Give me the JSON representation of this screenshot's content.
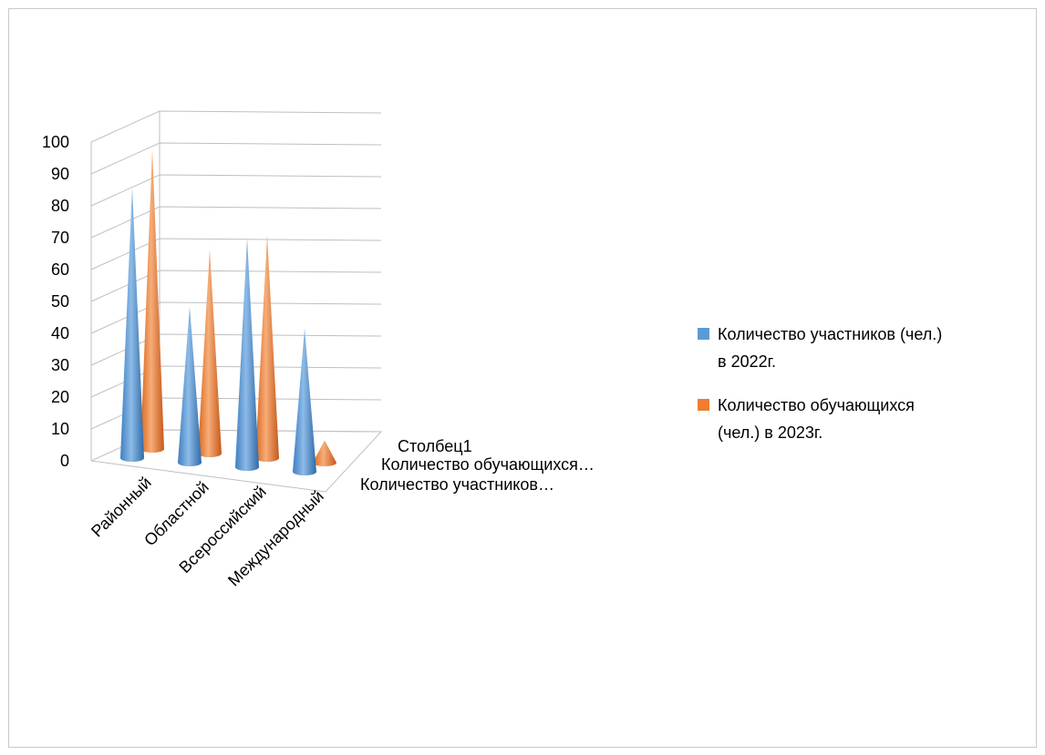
{
  "chart_data": {
    "type": "bar",
    "style": "3d-cone",
    "categories": [
      "Районный",
      "Областной",
      "Всероссийский",
      "Международный"
    ],
    "series": [
      {
        "name": "Количество участников (чел.) в 2022г.",
        "axis_label": "Количество участников…",
        "color": "#5b9bd5",
        "values": [
          85,
          49,
          72,
          45
        ]
      },
      {
        "name": "Количество обучающихся (чел.) в 2023г.",
        "axis_label": "Количество обучающихся…",
        "color": "#ed7d31",
        "values": [
          94,
          64,
          70,
          7
        ]
      },
      {
        "name": "Столбец1",
        "axis_label": "Столбец1",
        "color": "#a5a5a5",
        "values": [
          0,
          0,
          0,
          0
        ]
      }
    ],
    "y_ticks": [
      "0",
      "10",
      "20",
      "30",
      "40",
      "50",
      "60",
      "70",
      "80",
      "90",
      "100"
    ],
    "ylim": [
      0,
      100
    ],
    "grid": true,
    "legend_position": "right",
    "legend": [
      {
        "label_line1": "Количество участников (чел.)",
        "label_line2": "в 2022г.",
        "color": "#5b9bd5"
      },
      {
        "label_line1": "Количество обучающихся",
        "label_line2": "(чел.) в 2023г.",
        "color": "#ed7d31"
      }
    ]
  }
}
